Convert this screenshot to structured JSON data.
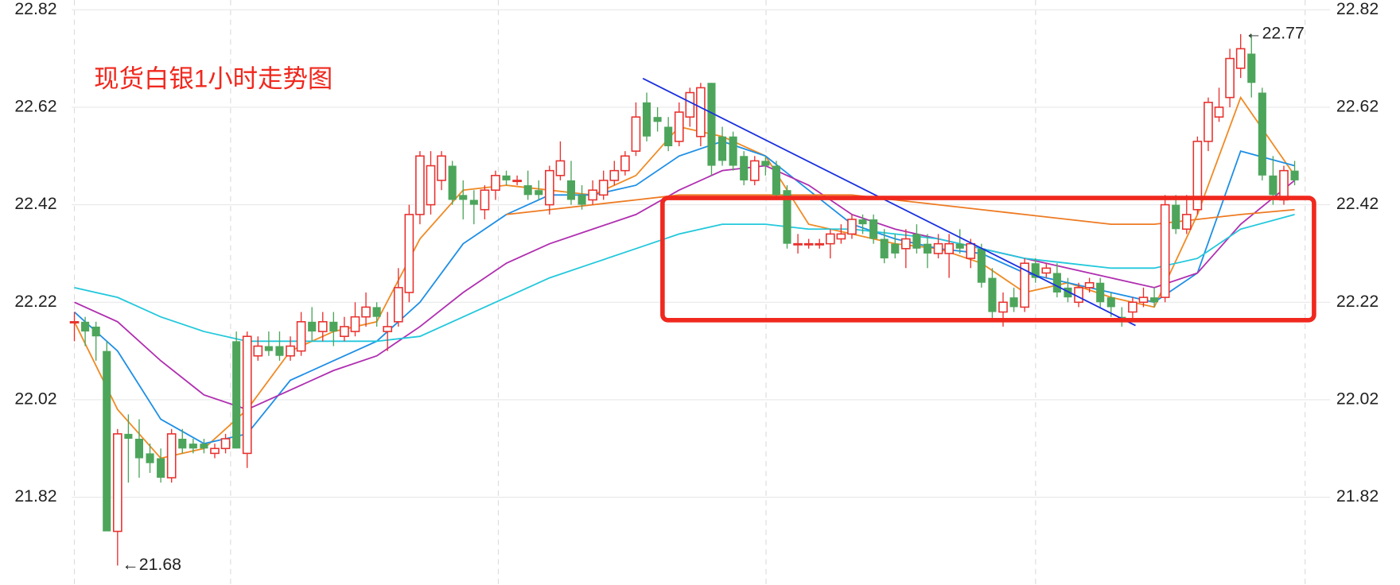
{
  "chart_data": {
    "type": "candlestick",
    "title": "现货白银1小时走势图",
    "ylim": [
      21.64,
      22.84
    ],
    "yticks": [
      22.82,
      22.62,
      22.42,
      22.22,
      22.02,
      21.82
    ],
    "grid": true,
    "up_color": "#e8312e",
    "down_color": "#4da55b",
    "candles": [
      [
        22.18,
        22.2,
        22.14,
        22.18
      ],
      [
        22.18,
        22.19,
        22.13,
        22.16
      ],
      [
        22.17,
        22.18,
        22.1,
        22.15
      ],
      [
        22.12,
        22.14,
        21.75,
        21.75
      ],
      [
        21.75,
        21.96,
        21.68,
        21.95
      ],
      [
        21.95,
        21.99,
        21.85,
        21.94
      ],
      [
        21.94,
        21.98,
        21.86,
        21.9
      ],
      [
        21.91,
        21.93,
        21.87,
        21.89
      ],
      [
        21.9,
        21.92,
        21.85,
        21.86
      ],
      [
        21.86,
        21.96,
        21.85,
        21.95
      ],
      [
        21.94,
        21.96,
        21.91,
        21.92
      ],
      [
        21.93,
        21.94,
        21.91,
        21.92
      ],
      [
        21.93,
        21.94,
        21.91,
        21.92
      ],
      [
        21.91,
        21.93,
        21.9,
        21.92
      ],
      [
        21.92,
        21.95,
        21.91,
        21.94
      ],
      [
        22.14,
        22.16,
        21.92,
        21.92
      ],
      [
        21.91,
        22.16,
        21.88,
        22.15
      ],
      [
        22.11,
        22.15,
        22.1,
        22.13
      ],
      [
        22.13,
        22.16,
        22.11,
        22.12
      ],
      [
        22.13,
        22.16,
        22.1,
        22.11
      ],
      [
        22.11,
        22.15,
        22.1,
        22.13
      ],
      [
        22.12,
        22.2,
        22.11,
        22.18
      ],
      [
        22.18,
        22.21,
        22.14,
        22.16
      ],
      [
        22.16,
        22.2,
        22.14,
        22.18
      ],
      [
        22.18,
        22.2,
        22.13,
        22.16
      ],
      [
        22.15,
        22.19,
        22.14,
        22.17
      ],
      [
        22.16,
        22.22,
        22.15,
        22.19
      ],
      [
        22.19,
        22.24,
        22.17,
        22.21
      ],
      [
        22.21,
        22.22,
        22.17,
        22.19
      ],
      [
        22.16,
        22.2,
        22.12,
        22.17
      ],
      [
        22.18,
        22.29,
        22.17,
        22.25
      ],
      [
        22.24,
        22.42,
        22.22,
        22.4
      ],
      [
        22.4,
        22.53,
        22.38,
        22.52
      ],
      [
        22.42,
        22.53,
        22.4,
        22.5
      ],
      [
        22.47,
        22.53,
        22.45,
        22.52
      ],
      [
        22.5,
        22.51,
        22.42,
        22.43
      ],
      [
        22.44,
        22.47,
        22.39,
        22.43
      ],
      [
        22.43,
        22.45,
        22.38,
        22.42
      ],
      [
        22.41,
        22.46,
        22.39,
        22.45
      ],
      [
        22.45,
        22.49,
        22.43,
        22.48
      ],
      [
        22.48,
        22.49,
        22.46,
        22.47
      ],
      [
        22.47,
        22.48,
        22.46,
        22.47
      ],
      [
        22.46,
        22.49,
        22.43,
        22.44
      ],
      [
        22.45,
        22.47,
        22.43,
        22.44
      ],
      [
        22.42,
        22.5,
        22.4,
        22.49
      ],
      [
        22.48,
        22.55,
        22.47,
        22.51
      ],
      [
        22.47,
        22.51,
        22.42,
        22.43
      ],
      [
        22.44,
        22.46,
        22.41,
        22.42
      ],
      [
        22.43,
        22.47,
        22.42,
        22.45
      ],
      [
        22.44,
        22.49,
        22.43,
        22.47
      ],
      [
        22.47,
        22.51,
        22.46,
        22.49
      ],
      [
        22.49,
        22.53,
        22.48,
        22.52
      ],
      [
        22.53,
        22.63,
        22.52,
        22.6
      ],
      [
        22.63,
        22.65,
        22.55,
        22.56
      ],
      [
        22.6,
        22.62,
        22.57,
        22.59
      ],
      [
        22.58,
        22.6,
        22.53,
        22.54
      ],
      [
        22.55,
        22.63,
        22.54,
        22.61
      ],
      [
        22.6,
        22.66,
        22.58,
        22.65
      ],
      [
        22.56,
        22.67,
        22.54,
        22.66
      ],
      [
        22.67,
        22.67,
        22.48,
        22.5
      ],
      [
        22.56,
        22.58,
        22.5,
        22.51
      ],
      [
        22.56,
        22.57,
        22.49,
        22.5
      ],
      [
        22.52,
        22.53,
        22.46,
        22.47
      ],
      [
        22.47,
        22.52,
        22.46,
        22.51
      ],
      [
        22.51,
        22.52,
        22.48,
        22.5
      ],
      [
        22.5,
        22.51,
        22.43,
        22.44
      ],
      [
        22.45,
        22.46,
        22.33,
        22.34
      ],
      [
        22.34,
        22.36,
        22.32,
        22.34
      ],
      [
        22.34,
        22.35,
        22.33,
        22.34
      ],
      [
        22.34,
        22.35,
        22.33,
        22.34
      ],
      [
        22.34,
        22.37,
        22.31,
        22.36
      ],
      [
        22.35,
        22.38,
        22.34,
        22.36
      ],
      [
        22.36,
        22.4,
        22.35,
        22.39
      ],
      [
        22.39,
        22.4,
        22.36,
        22.38
      ],
      [
        22.39,
        22.4,
        22.34,
        22.35
      ],
      [
        22.35,
        22.37,
        22.3,
        22.31
      ],
      [
        22.34,
        22.36,
        22.31,
        22.32
      ],
      [
        22.33,
        22.37,
        22.29,
        22.35
      ],
      [
        22.36,
        22.38,
        22.32,
        22.33
      ],
      [
        22.34,
        22.36,
        22.29,
        22.32
      ],
      [
        22.32,
        22.36,
        22.31,
        22.34
      ],
      [
        22.32,
        22.36,
        22.27,
        22.34
      ],
      [
        22.34,
        22.37,
        22.32,
        22.33
      ],
      [
        22.31,
        22.35,
        22.29,
        22.34
      ],
      [
        22.33,
        22.34,
        22.25,
        22.26
      ],
      [
        22.27,
        22.29,
        22.18,
        22.2
      ],
      [
        22.2,
        22.24,
        22.17,
        22.22
      ],
      [
        22.23,
        22.25,
        22.2,
        22.21
      ],
      [
        22.21,
        22.31,
        22.2,
        22.3
      ],
      [
        22.3,
        22.31,
        22.26,
        22.27
      ],
      [
        22.28,
        22.3,
        22.27,
        22.29
      ],
      [
        22.28,
        22.3,
        22.23,
        22.24
      ],
      [
        22.25,
        22.27,
        22.22,
        22.23
      ],
      [
        22.22,
        22.26,
        22.21,
        22.25
      ],
      [
        22.25,
        22.27,
        22.24,
        22.26
      ],
      [
        22.26,
        22.27,
        22.21,
        22.22
      ],
      [
        22.23,
        22.24,
        22.19,
        22.21
      ],
      [
        22.19,
        22.21,
        22.17,
        22.18
      ],
      [
        22.2,
        22.23,
        22.18,
        22.22
      ],
      [
        22.22,
        22.25,
        22.21,
        22.23
      ],
      [
        22.23,
        22.25,
        22.21,
        22.22
      ],
      [
        22.23,
        22.44,
        22.22,
        22.42
      ],
      [
        22.42,
        22.44,
        22.36,
        22.37
      ],
      [
        22.37,
        22.44,
        22.36,
        22.4
      ],
      [
        22.41,
        22.56,
        22.4,
        22.55
      ],
      [
        22.55,
        22.64,
        22.53,
        22.63
      ],
      [
        22.6,
        22.66,
        22.59,
        22.62
      ],
      [
        22.64,
        22.74,
        22.62,
        22.72
      ],
      [
        22.7,
        22.77,
        22.68,
        22.74
      ],
      [
        22.73,
        22.77,
        22.64,
        22.67
      ],
      [
        22.65,
        22.66,
        22.47,
        22.48
      ],
      [
        22.48,
        22.52,
        22.42,
        22.44
      ],
      [
        22.43,
        22.5,
        22.42,
        22.49
      ],
      [
        22.49,
        22.51,
        22.46,
        22.47
      ]
    ],
    "ma_x": [
      0,
      4,
      8,
      12,
      16,
      20,
      24,
      28,
      32,
      36,
      40,
      44,
      48,
      52,
      56,
      60,
      64,
      68,
      72,
      76,
      80,
      84,
      88,
      92,
      96,
      100,
      104,
      108,
      113
    ],
    "lines": [
      {
        "color": "#f08a24",
        "values": [
          22.18,
          22.0,
          21.9,
          21.92,
          22.0,
          22.12,
          22.16,
          22.18,
          22.35,
          22.45,
          22.46,
          22.45,
          22.44,
          22.48,
          22.58,
          22.56,
          22.52,
          22.38,
          22.36,
          22.34,
          22.33,
          22.3,
          22.24,
          22.26,
          22.23,
          22.21,
          22.4,
          22.64,
          22.48
        ]
      },
      {
        "color": "#1e8fe6",
        "values": [
          22.2,
          22.12,
          21.98,
          21.93,
          21.95,
          22.06,
          22.1,
          22.14,
          22.22,
          22.34,
          22.4,
          22.44,
          22.44,
          22.46,
          22.52,
          22.55,
          22.52,
          22.45,
          22.38,
          22.35,
          22.33,
          22.32,
          22.28,
          22.26,
          22.24,
          22.22,
          22.28,
          22.53,
          22.5
        ]
      },
      {
        "color": "#b02eb0",
        "values": [
          22.22,
          22.18,
          22.1,
          22.03,
          22.0,
          22.04,
          22.08,
          22.11,
          22.17,
          22.24,
          22.3,
          22.34,
          22.37,
          22.4,
          22.45,
          22.49,
          22.5,
          22.46,
          22.4,
          22.37,
          22.35,
          22.33,
          22.31,
          22.29,
          22.27,
          22.25,
          22.28,
          22.38,
          22.47
        ]
      },
      {
        "color": "#ee7a22",
        "values": [
          null,
          null,
          null,
          null,
          null,
          null,
          null,
          null,
          null,
          null,
          22.4,
          22.41,
          22.42,
          22.43,
          22.44,
          22.44,
          22.44,
          22.44,
          22.44,
          22.43,
          22.42,
          22.41,
          22.4,
          22.39,
          22.38,
          22.38,
          22.39,
          22.4,
          22.41
        ]
      },
      {
        "color": "#22c8dc",
        "values": [
          22.25,
          22.23,
          22.19,
          22.16,
          22.14,
          22.14,
          22.14,
          22.14,
          22.15,
          22.19,
          22.23,
          22.27,
          22.3,
          22.33,
          22.36,
          22.38,
          22.38,
          22.37,
          22.37,
          22.36,
          22.35,
          22.33,
          22.31,
          22.3,
          22.29,
          22.29,
          22.31,
          22.37,
          22.4
        ]
      }
    ],
    "annotations": [
      {
        "text": "←22.77",
        "value": 22.77,
        "index": 108
      },
      {
        "text": "←21.68",
        "value": 21.68,
        "index": 4
      }
    ]
  }
}
